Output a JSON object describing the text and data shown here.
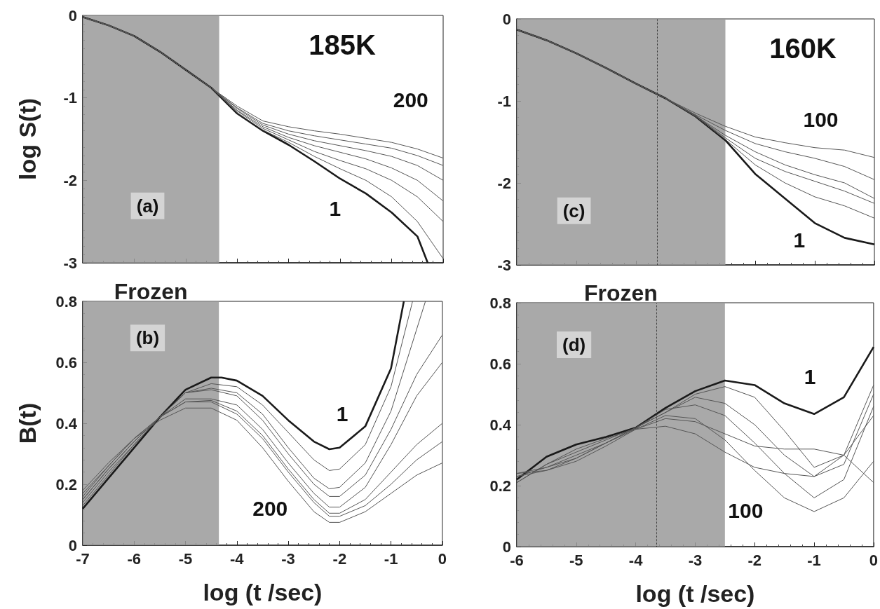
{
  "chart_data": [
    {
      "type": "line",
      "ylabel": "log S(t)",
      "xlim": [
        -7,
        0
      ],
      "xticks": [
        -7,
        -6,
        -5,
        -4,
        -3,
        -2,
        -1,
        0
      ],
      "ylim": [
        -3,
        0
      ],
      "yticks": [
        0,
        -1,
        -2,
        -3
      ],
      "tick_labels": "y",
      "x": [
        -7,
        -6.5,
        -6,
        -5.5,
        -5,
        -4.5,
        -4,
        -3.5,
        -3,
        -2.5,
        -2,
        -1.5,
        -1,
        -0.5,
        0
      ],
      "series": [
        {
          "color": "#1a1a1a",
          "x": [
            -7,
            -6.5,
            -6,
            -5.5,
            -5,
            -4.5,
            -4,
            -3.5,
            -3,
            -2.5,
            -2,
            -1.5,
            -1,
            -0.5,
            -0.3
          ],
          "values": [
            -0.02,
            -0.12,
            -0.25,
            -0.44,
            -0.66,
            -0.88,
            -1.19,
            -1.4,
            -1.57,
            -1.77,
            -1.98,
            -2.16,
            -2.39,
            -2.68,
            -3.0
          ]
        },
        {
          "color": "#555555",
          "values": [
            -0.02,
            -0.12,
            -0.25,
            -0.44,
            -0.66,
            -0.88,
            -1.1,
            -1.28,
            -1.35,
            -1.4,
            -1.44,
            -1.49,
            -1.54,
            -1.62,
            -1.73
          ]
        },
        {
          "color": "#555555",
          "values": [
            -0.02,
            -0.12,
            -0.25,
            -0.44,
            -0.66,
            -0.88,
            -1.12,
            -1.31,
            -1.4,
            -1.46,
            -1.51,
            -1.56,
            -1.61,
            -1.7,
            -1.82
          ]
        },
        {
          "color": "#555555",
          "values": [
            -0.02,
            -0.12,
            -0.25,
            -0.44,
            -0.66,
            -0.88,
            -1.13,
            -1.33,
            -1.44,
            -1.52,
            -1.58,
            -1.64,
            -1.71,
            -1.82,
            -2.0
          ]
        },
        {
          "color": "#555555",
          "values": [
            -0.02,
            -0.12,
            -0.25,
            -0.44,
            -0.66,
            -0.88,
            -1.15,
            -1.35,
            -1.48,
            -1.58,
            -1.66,
            -1.74,
            -1.85,
            -2.0,
            -2.25
          ]
        },
        {
          "color": "#555555",
          "values": [
            -0.02,
            -0.12,
            -0.25,
            -0.44,
            -0.66,
            -0.88,
            -1.16,
            -1.37,
            -1.51,
            -1.65,
            -1.76,
            -1.86,
            -2.0,
            -2.2,
            -2.5
          ]
        },
        {
          "color": "#555555",
          "values": [
            -0.02,
            -0.12,
            -0.25,
            -0.44,
            -0.66,
            -0.88,
            -1.18,
            -1.39,
            -1.54,
            -1.71,
            -1.86,
            -2.0,
            -2.2,
            -2.5,
            -2.95
          ]
        }
      ],
      "bands": [
        {
          "axis": "x",
          "from": -7,
          "to": -4.35,
          "color": "#9a9a9a"
        }
      ],
      "annotations": [
        "185K",
        "(a)",
        "200",
        "1"
      ]
    },
    {
      "type": "line",
      "xlabel": "log (t /sec)",
      "ylabel": "B(t)",
      "xlim": [
        -7,
        0
      ],
      "xticks": [
        -7,
        -6,
        -5,
        -4,
        -3,
        -2,
        -1,
        0
      ],
      "ylim": [
        0,
        0.8
      ],
      "yticks": [
        0,
        0.2,
        0.4,
        0.6,
        0.8
      ],
      "x": [
        -7,
        -6.5,
        -6,
        -5.5,
        -5,
        -4.5,
        -4,
        -3.5,
        -3,
        -2.5,
        -2.2,
        -2,
        -1.5,
        -1,
        -0.5,
        0
      ],
      "series": [
        {
          "color": "#1a1a1a",
          "x": [
            -7,
            -6.5,
            -6,
            -5.5,
            -5,
            -4.5,
            -4.3,
            -4,
            -3.5,
            -3,
            -2.5,
            -2.2,
            -2,
            -1.5,
            -1,
            -0.75
          ],
          "values": [
            0.12,
            0.22,
            0.32,
            0.42,
            0.51,
            0.55,
            0.55,
            0.54,
            0.49,
            0.41,
            0.34,
            0.315,
            0.32,
            0.39,
            0.58,
            0.8
          ]
        },
        {
          "color": "#555555",
          "x": [
            -7,
            -6.5,
            -6,
            -5.5,
            -5,
            -4.5,
            -4,
            -3.5,
            -3,
            -2.5,
            -2.2,
            -2,
            -1.5,
            -1,
            -0.58
          ],
          "values": [
            0.13,
            0.23,
            0.33,
            0.42,
            0.5,
            0.53,
            0.52,
            0.46,
            0.37,
            0.28,
            0.245,
            0.25,
            0.33,
            0.52,
            0.8
          ]
        },
        {
          "color": "#555555",
          "x": [
            -7,
            -6.5,
            -6,
            -5.5,
            -5,
            -4.5,
            -4,
            -3.5,
            -3,
            -2.5,
            -2.2,
            -2,
            -1.5,
            -1,
            -0.33
          ],
          "values": [
            0.14,
            0.24,
            0.33,
            0.42,
            0.5,
            0.515,
            0.5,
            0.43,
            0.32,
            0.22,
            0.185,
            0.19,
            0.27,
            0.44,
            0.8
          ]
        },
        {
          "color": "#555555",
          "values": [
            0.15,
            0.25,
            0.34,
            0.42,
            0.5,
            0.51,
            0.49,
            0.41,
            0.3,
            0.2,
            0.16,
            0.16,
            0.23,
            0.38,
            0.56,
            0.69
          ]
        },
        {
          "color": "#555555",
          "values": [
            0.15,
            0.25,
            0.34,
            0.42,
            0.48,
            0.48,
            0.46,
            0.38,
            0.27,
            0.17,
            0.125,
            0.125,
            0.19,
            0.33,
            0.49,
            0.6
          ]
        },
        {
          "color": "#555555",
          "values": [
            0.16,
            0.26,
            0.35,
            0.42,
            0.47,
            0.475,
            0.44,
            0.36,
            0.25,
            0.15,
            0.105,
            0.105,
            0.15,
            0.24,
            0.33,
            0.4
          ]
        },
        {
          "color": "#555555",
          "values": [
            0.17,
            0.26,
            0.35,
            0.42,
            0.47,
            0.47,
            0.43,
            0.35,
            0.24,
            0.14,
            0.095,
            0.095,
            0.13,
            0.2,
            0.28,
            0.34
          ]
        },
        {
          "color": "#555555",
          "values": [
            0.18,
            0.27,
            0.35,
            0.41,
            0.45,
            0.45,
            0.41,
            0.32,
            0.21,
            0.11,
            0.075,
            0.075,
            0.11,
            0.17,
            0.23,
            0.27
          ]
        }
      ],
      "bands": [
        {
          "axis": "x",
          "from": -7,
          "to": -4.35,
          "label": "Frozen",
          "color": "#9a9a9a"
        }
      ],
      "annotations": [
        "(b)",
        "1",
        "200"
      ]
    },
    {
      "type": "line",
      "xlim": [
        -6,
        0
      ],
      "xticks": [
        -6,
        -5,
        -4,
        -3,
        -2,
        -1,
        0
      ],
      "ylim": [
        -3,
        0
      ],
      "yticks": [
        0,
        -1,
        -2,
        -3
      ],
      "tick_labels": "y",
      "x": [
        -6,
        -5.5,
        -5,
        -4.5,
        -4,
        -3.5,
        -3,
        -2.5,
        -2,
        -1.5,
        -1,
        -0.5,
        0
      ],
      "series": [
        {
          "color": "#1a1a1a",
          "values": [
            -0.13,
            -0.26,
            -0.42,
            -0.6,
            -0.79,
            -0.97,
            -1.19,
            -1.48,
            -1.89,
            -2.19,
            -2.49,
            -2.67,
            -2.75
          ]
        },
        {
          "color": "#555555",
          "values": [
            -0.13,
            -0.26,
            -0.42,
            -0.6,
            -0.79,
            -0.97,
            -1.15,
            -1.31,
            -1.44,
            -1.51,
            -1.57,
            -1.6,
            -1.69
          ]
        },
        {
          "color": "#555555",
          "values": [
            -0.13,
            -0.26,
            -0.42,
            -0.6,
            -0.79,
            -0.97,
            -1.17,
            -1.36,
            -1.52,
            -1.62,
            -1.7,
            -1.8,
            -1.96
          ]
        },
        {
          "color": "#555555",
          "values": [
            -0.13,
            -0.26,
            -0.42,
            -0.6,
            -0.79,
            -0.97,
            -1.18,
            -1.42,
            -1.62,
            -1.78,
            -1.9,
            -2.0,
            -2.19
          ]
        },
        {
          "color": "#555555",
          "values": [
            -0.13,
            -0.26,
            -0.42,
            -0.6,
            -0.79,
            -0.97,
            -1.18,
            -1.45,
            -1.7,
            -1.86,
            -1.98,
            -2.1,
            -2.25
          ]
        },
        {
          "color": "#555555",
          "values": [
            -0.13,
            -0.26,
            -0.42,
            -0.6,
            -0.79,
            -0.97,
            -1.19,
            -1.47,
            -1.78,
            -2.0,
            -2.17,
            -2.28,
            -2.43
          ]
        }
      ],
      "bands": [
        {
          "axis": "x",
          "from": -6,
          "to": -2.5,
          "color": "#9a9a9a"
        }
      ],
      "ref_lines": [
        {
          "axis": "x",
          "value": -3.65,
          "line_style": "dotted"
        }
      ],
      "annotations": [
        "160K",
        "(c)",
        "100",
        "1"
      ]
    },
    {
      "type": "line",
      "xlabel": "log (t /sec)",
      "xlim": [
        -6,
        0
      ],
      "xticks": [
        -6,
        -5,
        -4,
        -3,
        -2,
        -1,
        0
      ],
      "ylim": [
        0,
        0.8
      ],
      "yticks": [
        0,
        0.2,
        0.4,
        0.6,
        0.8
      ],
      "x": [
        -6,
        -5.5,
        -5,
        -4.5,
        -4,
        -3.5,
        -3,
        -2.5,
        -2,
        -1.5,
        -1,
        -0.5,
        0
      ],
      "series": [
        {
          "color": "#1a1a1a",
          "values": [
            0.22,
            0.295,
            0.335,
            0.36,
            0.39,
            0.455,
            0.51,
            0.545,
            0.53,
            0.47,
            0.435,
            0.49,
            0.655
          ]
        },
        {
          "color": "#555555",
          "values": [
            0.21,
            0.27,
            0.31,
            0.35,
            0.39,
            0.44,
            0.5,
            0.525,
            0.49,
            0.38,
            0.26,
            0.3,
            0.53
          ]
        },
        {
          "color": "#555555",
          "values": [
            0.23,
            0.26,
            0.3,
            0.34,
            0.39,
            0.44,
            0.49,
            0.47,
            0.4,
            0.3,
            0.23,
            0.27,
            0.5
          ]
        },
        {
          "color": "#555555",
          "values": [
            0.23,
            0.25,
            0.29,
            0.34,
            0.39,
            0.45,
            0.465,
            0.43,
            0.34,
            0.24,
            0.16,
            0.22,
            0.46
          ]
        },
        {
          "color": "#555555",
          "values": [
            0.24,
            0.25,
            0.28,
            0.33,
            0.385,
            0.43,
            0.42,
            0.35,
            0.25,
            0.16,
            0.115,
            0.16,
            0.28
          ]
        },
        {
          "color": "#555555",
          "values": [
            0.21,
            0.27,
            0.32,
            0.355,
            0.385,
            0.395,
            0.37,
            0.31,
            0.26,
            0.24,
            0.23,
            0.3,
            0.43
          ]
        },
        {
          "color": "#555555",
          "values": [
            0.24,
            0.26,
            0.29,
            0.34,
            0.385,
            0.42,
            0.41,
            0.37,
            0.33,
            0.32,
            0.32,
            0.3,
            0.21
          ]
        }
      ],
      "bands": [
        {
          "axis": "x",
          "from": -6,
          "to": -2.5,
          "label": "Frozen",
          "color": "#9a9a9a"
        }
      ],
      "ref_lines": [
        {
          "axis": "x",
          "value": -3.65,
          "line_style": "dotted"
        }
      ],
      "annotations": [
        "(d)",
        "1",
        "100"
      ]
    }
  ]
}
